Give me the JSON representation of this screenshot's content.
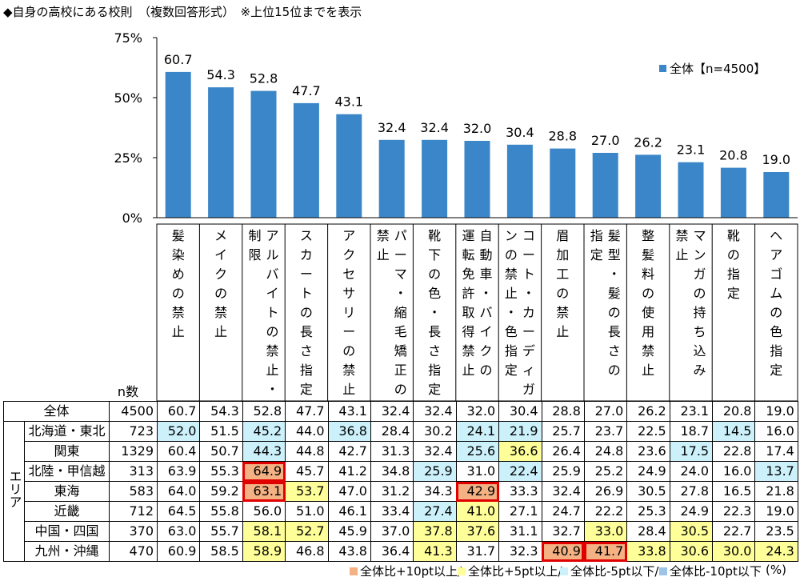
{
  "title": "◆自身の高校にある校則　（複数回答形式）　※上位15位までを表示",
  "chart_data": {
    "type": "bar",
    "categories": [
      "髪染めの禁止",
      "メイクの禁止",
      "アルバイトの禁止・制限",
      "スカートの長さ指定",
      "アクセサリーの禁止",
      "パーマ・縮毛矯正の禁止",
      "靴下の色・長さ指定",
      "自動車・バイクの運転免許取得禁止",
      "コート・カーディガンの禁止・色指定",
      "眉加工の禁止",
      "髪型・髪の長さの指定",
      "整髪料の使用禁止",
      "マンガの持ち込み禁止",
      "靴の指定",
      "ヘアゴムの色指定"
    ],
    "series": [
      {
        "name": "全体【n=4500】",
        "values": [
          60.7,
          54.3,
          52.8,
          47.7,
          43.1,
          32.4,
          32.4,
          32.0,
          30.4,
          28.8,
          27.0,
          26.2,
          23.1,
          20.8,
          19.0
        ]
      }
    ],
    "y_ticks": [
      "0%",
      "25%",
      "50%",
      "75%"
    ],
    "ylim": [
      0,
      75
    ],
    "legend_position": "top-right",
    "color": "#3a86c8"
  },
  "category_columns": [
    [
      "髪",
      "染",
      "め",
      "の",
      "禁",
      "止"
    ],
    [
      "メ",
      "イ",
      "ク",
      "の",
      "禁",
      "止"
    ],
    [
      "ア",
      "ル",
      "バ",
      "イ",
      "ト",
      "の",
      "禁",
      "止",
      "・",
      "|",
      "制",
      "限"
    ],
    [
      "ス",
      "カ",
      "ー",
      "ト",
      "の",
      "長",
      "さ",
      "指",
      "定"
    ],
    [
      "ア",
      "ク",
      "セ",
      "サ",
      "リ",
      "ー",
      "の",
      "禁",
      "止"
    ],
    [
      "パ",
      "ー",
      "マ",
      "・",
      "縮",
      "毛",
      "矯",
      "正",
      "の",
      "|",
      "禁",
      "止"
    ],
    [
      "靴",
      "下",
      "の",
      "色",
      "・",
      "長",
      "さ",
      "指",
      "定"
    ],
    [
      "自",
      "動",
      "車",
      "・",
      "バ",
      "イ",
      "ク",
      "の",
      "|",
      "運",
      "転",
      "免",
      "許",
      "取",
      "得",
      "禁",
      "止"
    ],
    [
      "コ",
      "ー",
      "ト",
      "・",
      "カ",
      "ー",
      "デ",
      "ィ",
      "ガ",
      "|",
      "ン",
      "の",
      "禁",
      "止",
      "・",
      "色",
      "指",
      "定"
    ],
    [
      "眉",
      "加",
      "工",
      "の",
      "禁",
      "止"
    ],
    [
      "髪",
      "型",
      "・",
      "髪",
      "の",
      "長",
      "さ",
      "の",
      "|",
      "指",
      "定"
    ],
    [
      "整",
      "髪",
      "料",
      "の",
      "使",
      "用",
      "禁",
      "止"
    ],
    [
      "マ",
      "ン",
      "ガ",
      "の",
      "持",
      "ち",
      "込",
      "み",
      "|",
      "禁",
      "止"
    ],
    [
      "靴",
      "の",
      "指",
      "定"
    ],
    [
      "ヘ",
      "ア",
      "ゴ",
      "ム",
      "の",
      "色",
      "指",
      "定"
    ]
  ],
  "table": {
    "n_header": "n数",
    "area_label": "エリア",
    "rows": [
      {
        "label": "全体",
        "n": "4500",
        "values": [
          "60.7",
          "54.3",
          "52.8",
          "47.7",
          "43.1",
          "32.4",
          "32.4",
          "32.0",
          "30.4",
          "28.8",
          "27.0",
          "26.2",
          "23.1",
          "20.8",
          "19.0"
        ],
        "colors": [
          "",
          "",
          "",
          "",
          "",
          "",
          "",
          "",
          "",
          "",
          "",
          "",
          "",
          "",
          ""
        ],
        "hl": []
      },
      {
        "label": "北海道・東北",
        "n": "723",
        "values": [
          "52.0",
          "51.5",
          "45.2",
          "44.0",
          "36.8",
          "28.4",
          "30.2",
          "24.1",
          "21.9",
          "25.7",
          "23.7",
          "22.5",
          "18.7",
          "14.5",
          "16.0"
        ],
        "colors": [
          "c",
          "",
          "c",
          "",
          "c",
          "",
          "",
          "c",
          "c",
          "",
          "",
          "",
          "",
          "c",
          ""
        ],
        "hl": []
      },
      {
        "label": "関東",
        "n": "1329",
        "values": [
          "60.4",
          "50.7",
          "44.3",
          "44.8",
          "42.7",
          "31.3",
          "32.4",
          "25.6",
          "36.6",
          "26.4",
          "24.8",
          "23.6",
          "17.5",
          "22.8",
          "17.4"
        ],
        "colors": [
          "",
          "",
          "c",
          "",
          "",
          "",
          "",
          "c",
          "y",
          "",
          "",
          "",
          "c",
          "",
          ""
        ],
        "hl": []
      },
      {
        "label": "北陸・甲信越",
        "n": "313",
        "values": [
          "63.9",
          "55.3",
          "64.9",
          "45.7",
          "41.2",
          "34.8",
          "25.9",
          "31.0",
          "22.4",
          "25.9",
          "25.2",
          "24.9",
          "24.0",
          "16.0",
          "13.7"
        ],
        "colors": [
          "",
          "",
          "o",
          "",
          "",
          "",
          "c",
          "",
          "c",
          "",
          "",
          "",
          "",
          "",
          "c"
        ],
        "hl": [
          2
        ]
      },
      {
        "label": "東海",
        "n": "583",
        "values": [
          "64.0",
          "59.2",
          "63.1",
          "53.7",
          "47.0",
          "31.2",
          "34.3",
          "42.9",
          "33.3",
          "32.4",
          "26.9",
          "30.5",
          "27.8",
          "16.5",
          "21.8"
        ],
        "colors": [
          "",
          "",
          "o",
          "y",
          "",
          "",
          "",
          "o",
          "",
          "",
          "",
          "",
          "",
          "",
          ""
        ],
        "hl": [
          2,
          7
        ]
      },
      {
        "label": "近畿",
        "n": "712",
        "values": [
          "64.5",
          "55.8",
          "56.0",
          "51.0",
          "46.1",
          "33.4",
          "27.4",
          "41.0",
          "27.1",
          "24.7",
          "22.2",
          "25.3",
          "24.9",
          "22.3",
          "19.0"
        ],
        "colors": [
          "",
          "",
          "",
          "",
          "",
          "",
          "c",
          "y",
          "",
          "",
          "",
          "",
          "",
          "",
          ""
        ],
        "hl": []
      },
      {
        "label": "中国・四国",
        "n": "370",
        "values": [
          "63.0",
          "55.7",
          "58.1",
          "52.7",
          "45.9",
          "37.0",
          "37.8",
          "37.6",
          "31.1",
          "32.7",
          "33.0",
          "28.4",
          "30.5",
          "22.7",
          "23.5"
        ],
        "colors": [
          "",
          "",
          "y",
          "y",
          "",
          "",
          "y",
          "y",
          "",
          "",
          "y",
          "",
          "y",
          "",
          ""
        ],
        "hl": []
      },
      {
        "label": "九州・沖縄",
        "n": "470",
        "values": [
          "60.9",
          "58.5",
          "58.9",
          "46.8",
          "43.8",
          "36.4",
          "41.3",
          "31.7",
          "32.3",
          "40.9",
          "41.7",
          "33.8",
          "30.6",
          "30.0",
          "24.3"
        ],
        "colors": [
          "",
          "",
          "y",
          "",
          "",
          "",
          "y",
          "",
          "",
          "o",
          "o",
          "y",
          "y",
          "y",
          "y"
        ],
        "hl": [
          9,
          10
        ]
      }
    ]
  },
  "footnote": {
    "items": [
      {
        "label": "全体比+10pt以上/",
        "color": "#f4b183"
      },
      {
        "label": "全体比+5pt以上/",
        "color": "#ffff99"
      },
      {
        "label": "全体比-5pt以下/",
        "color": "#ccf1fb"
      },
      {
        "label": "全体比-10pt以下",
        "color": "#9dc3e6"
      }
    ],
    "unit": "(%)"
  }
}
